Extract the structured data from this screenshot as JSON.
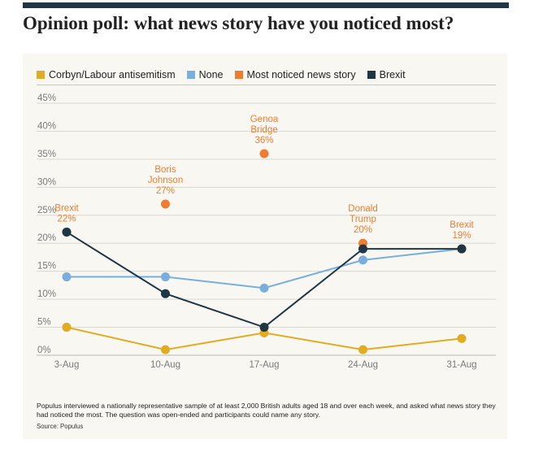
{
  "title": "Opinion poll: what news story have you noticed most?",
  "footnote": "Populus interviewed a nationally representative sample of at least 2,000 British adults aged 18 and over each week, and asked what news story they had noticed the most. The question was open-ended and participants could name any story.",
  "source": "Source: Populus",
  "chart_data": {
    "type": "line",
    "categories": [
      "3-Aug",
      "10-Aug",
      "17-Aug",
      "24-Aug",
      "31-Aug"
    ],
    "ylim": [
      0,
      45
    ],
    "yticks": [
      "0%",
      "5%",
      "10%",
      "15%",
      "20%",
      "25%",
      "30%",
      "35%",
      "40%",
      "45%"
    ],
    "ytick_values": [
      0,
      5,
      10,
      15,
      20,
      25,
      30,
      35,
      40,
      45
    ],
    "grid": "horizontal",
    "legend_position": "top",
    "series": [
      {
        "name": "Corbyn/Labour antisemitism",
        "color": "#e1ab22",
        "style": "line",
        "values": [
          5,
          1,
          4,
          1,
          3
        ]
      },
      {
        "name": "None",
        "color": "#7aaedc",
        "style": "line",
        "values": [
          14,
          14,
          12,
          17,
          19
        ]
      },
      {
        "name": "Most noticed news story",
        "color": "#ee7d31",
        "style": "points",
        "values": [
          22,
          27,
          36,
          20,
          19
        ]
      },
      {
        "name": "Brexit",
        "color": "#1f3645",
        "style": "line",
        "values": [
          22,
          11,
          5,
          19,
          19
        ]
      }
    ],
    "annotations": [
      {
        "category": "3-Aug",
        "lines": [
          "Brexit",
          "22%"
        ]
      },
      {
        "category": "10-Aug",
        "lines": [
          "Boris",
          "Johnson",
          "27%"
        ]
      },
      {
        "category": "17-Aug",
        "lines": [
          "Genoa",
          "Bridge",
          "36%"
        ]
      },
      {
        "category": "24-Aug",
        "lines": [
          "Donald",
          "Trump",
          "20%"
        ]
      },
      {
        "category": "31-Aug",
        "lines": [
          "Brexit",
          "19%"
        ]
      }
    ]
  }
}
